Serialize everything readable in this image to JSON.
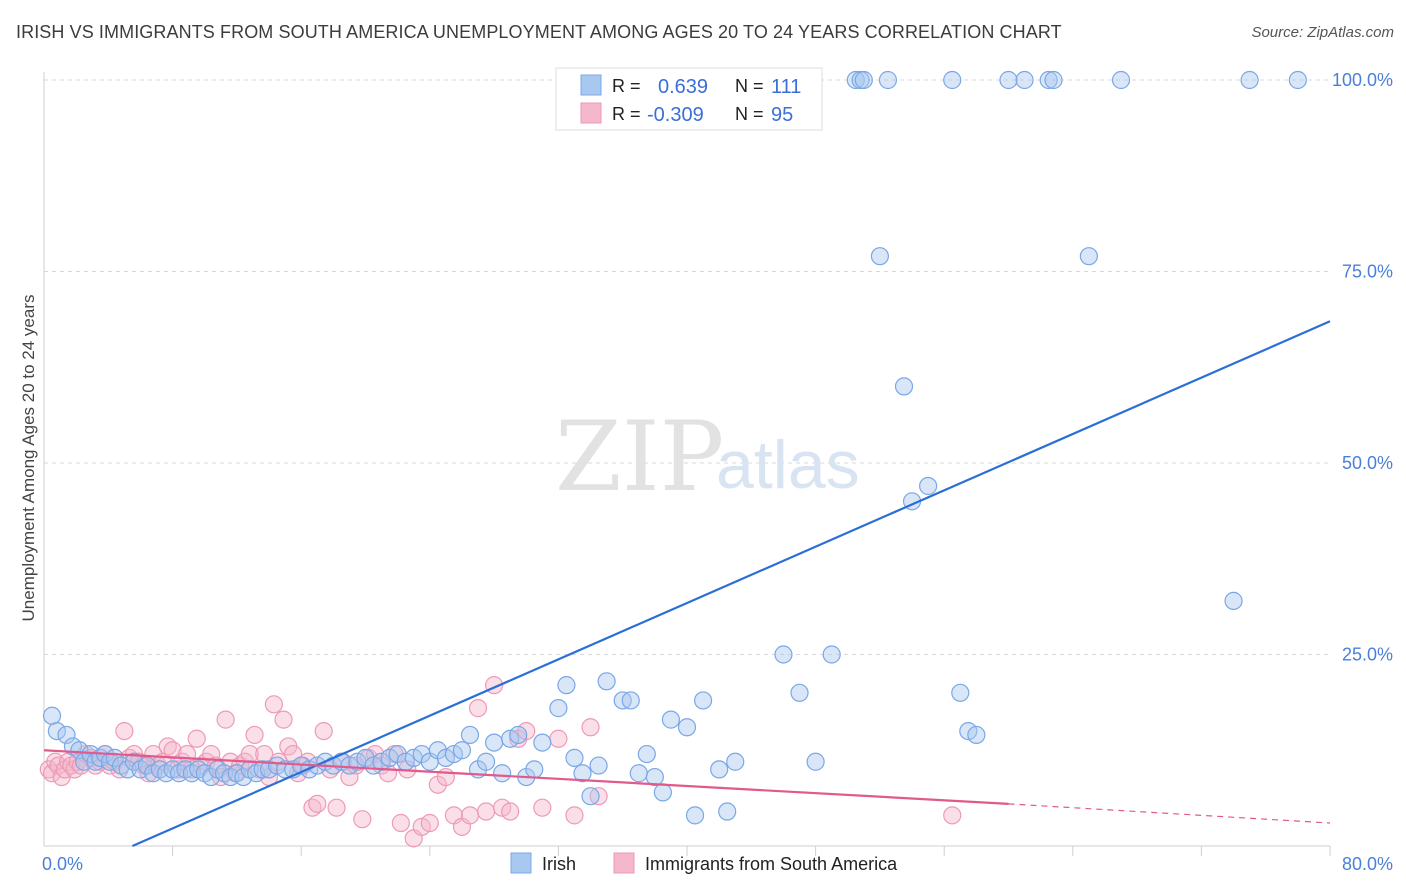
{
  "header": {
    "title": "IRISH VS IMMIGRANTS FROM SOUTH AMERICA UNEMPLOYMENT AMONG AGES 20 TO 24 YEARS CORRELATION CHART",
    "source": "Source: ZipAtlas.com"
  },
  "watermark": {
    "zip": "ZIP",
    "atlas": "atlas"
  },
  "legend": {
    "r_label": "R =",
    "n_label": "N =",
    "rows": [
      {
        "r": "0.639",
        "n": "111",
        "color": "#a8c8f0"
      },
      {
        "r": "-0.309",
        "n": "95",
        "color": "#f5b8cb"
      }
    ]
  },
  "bottom_legend": [
    {
      "label": "Irish",
      "color": "#a8c8f0"
    },
    {
      "label": "Immigrants from South America",
      "color": "#f5b8cb"
    }
  ],
  "colors": {
    "irish_fill": "rgba(168,200,240,0.45)",
    "irish_stroke": "#7aa7e6",
    "irish_line": "#2a6fd6",
    "sa_fill": "rgba(245,184,203,0.45)",
    "sa_stroke": "#ee9ab6",
    "sa_line": "#e05a8c",
    "grid": "#d8d8d8",
    "tick_text": "#4a7fd8"
  },
  "chart_data": {
    "type": "scatter",
    "title": "IRISH VS IMMIGRANTS FROM SOUTH AMERICA UNEMPLOYMENT AMONG AGES 20 TO 24 YEARS CORRELATION CHART",
    "xlabel": "",
    "ylabel": "Unemployment Among Ages 20 to 24 years",
    "xlim": [
      0,
      80
    ],
    "ylim": [
      0,
      105
    ],
    "x_tick_labels": [
      {
        "value": 0,
        "label": "0.0%"
      },
      {
        "value": 80,
        "label": "80.0%"
      }
    ],
    "y_tick_labels": [
      {
        "value": 25,
        "label": "25.0%"
      },
      {
        "value": 50,
        "label": "50.0%"
      },
      {
        "value": 75,
        "label": "75.0%"
      },
      {
        "value": 100,
        "label": "100.0%"
      }
    ],
    "x_grid_values": [
      0,
      8,
      16,
      24,
      32,
      40,
      48,
      56,
      64,
      72,
      80
    ],
    "y_grid_values": [
      25,
      50,
      75,
      100
    ],
    "grid": true,
    "legend_position": "top-center",
    "series": [
      {
        "name": "Irish",
        "r": 0.639,
        "n": 111,
        "trend": {
          "x1": 5.5,
          "y1": 0,
          "x2": 80,
          "y2": 68.5
        },
        "points": [
          [
            0.5,
            17
          ],
          [
            0.8,
            15
          ],
          [
            1.4,
            14.5
          ],
          [
            1.8,
            13
          ],
          [
            2.2,
            12.5
          ],
          [
            2.5,
            11
          ],
          [
            2.9,
            12
          ],
          [
            3.2,
            11
          ],
          [
            3.5,
            11.5
          ],
          [
            3.8,
            12
          ],
          [
            4.1,
            11
          ],
          [
            4.4,
            11.5
          ],
          [
            4.8,
            10.5
          ],
          [
            5.2,
            10
          ],
          [
            5.6,
            11
          ],
          [
            6,
            10
          ],
          [
            6.4,
            10.5
          ],
          [
            6.8,
            9.5
          ],
          [
            7.2,
            10
          ],
          [
            7.6,
            9.5
          ],
          [
            8,
            10
          ],
          [
            8.4,
            9.5
          ],
          [
            8.8,
            10
          ],
          [
            9.2,
            9.5
          ],
          [
            9.6,
            10
          ],
          [
            10,
            9.5
          ],
          [
            10.4,
            9
          ],
          [
            10.8,
            10
          ],
          [
            11.2,
            9.5
          ],
          [
            11.6,
            9
          ],
          [
            12,
            9.5
          ],
          [
            12.4,
            9
          ],
          [
            12.8,
            10
          ],
          [
            13.2,
            9.5
          ],
          [
            13.6,
            10
          ],
          [
            14,
            10
          ],
          [
            14.5,
            10.5
          ],
          [
            15,
            10
          ],
          [
            15.5,
            10
          ],
          [
            16,
            10.5
          ],
          [
            16.5,
            10
          ],
          [
            17,
            10.5
          ],
          [
            17.5,
            11
          ],
          [
            18,
            10.5
          ],
          [
            18.5,
            11
          ],
          [
            19,
            10.5
          ],
          [
            19.5,
            11
          ],
          [
            20,
            11.5
          ],
          [
            20.5,
            10.5
          ],
          [
            21,
            11
          ],
          [
            21.5,
            11.5
          ],
          [
            22,
            12
          ],
          [
            22.5,
            11
          ],
          [
            23,
            11.5
          ],
          [
            23.5,
            12
          ],
          [
            24,
            11
          ],
          [
            24.5,
            12.5
          ],
          [
            25,
            11.5
          ],
          [
            25.5,
            12
          ],
          [
            26,
            12.5
          ],
          [
            26.5,
            14.5
          ],
          [
            27,
            10
          ],
          [
            27.5,
            11
          ],
          [
            28,
            13.5
          ],
          [
            28.5,
            9.5
          ],
          [
            29,
            14
          ],
          [
            29.5,
            14.5
          ],
          [
            30,
            9
          ],
          [
            30.5,
            10
          ],
          [
            31,
            13.5
          ],
          [
            32,
            18
          ],
          [
            32.5,
            21
          ],
          [
            33,
            11.5
          ],
          [
            33.5,
            9.5
          ],
          [
            34,
            6.5
          ],
          [
            34.5,
            10.5
          ],
          [
            35,
            21.5
          ],
          [
            36,
            19
          ],
          [
            36.5,
            19
          ],
          [
            37,
            9.5
          ],
          [
            37.5,
            12
          ],
          [
            38,
            9
          ],
          [
            38.5,
            7
          ],
          [
            39,
            16.5
          ],
          [
            40,
            15.5
          ],
          [
            40.5,
            4
          ],
          [
            41,
            19
          ],
          [
            42,
            10
          ],
          [
            42.5,
            4.5
          ],
          [
            43,
            11
          ],
          [
            46,
            25
          ],
          [
            47,
            20
          ],
          [
            48,
            11
          ],
          [
            49,
            25
          ],
          [
            50.5,
            100
          ],
          [
            50.8,
            100
          ],
          [
            51,
            100
          ],
          [
            52,
            77
          ],
          [
            52.5,
            100
          ],
          [
            53.5,
            60
          ],
          [
            54,
            45
          ],
          [
            55,
            47
          ],
          [
            56.5,
            100
          ],
          [
            57,
            20
          ],
          [
            57.5,
            15
          ],
          [
            58,
            14.5
          ],
          [
            60,
            100
          ],
          [
            62.5,
            100
          ],
          [
            62.8,
            100
          ],
          [
            65,
            77
          ],
          [
            67,
            100
          ],
          [
            74,
            32
          ],
          [
            75,
            100
          ],
          [
            78,
            100
          ],
          [
            61,
            100
          ]
        ]
      },
      {
        "name": "Immigrants from South America",
        "r": -0.309,
        "n": 95,
        "trend": {
          "x1": 0,
          "y1": 12.5,
          "x2": 60,
          "y2": 5.5,
          "dashed_to_x": 80,
          "dashed_to_y": 3
        },
        "points": [
          [
            0.3,
            10
          ],
          [
            0.5,
            9.5
          ],
          [
            0.7,
            11
          ],
          [
            0.9,
            10.5
          ],
          [
            1.1,
            9
          ],
          [
            1.3,
            10
          ],
          [
            1.5,
            11
          ],
          [
            1.7,
            10.5
          ],
          [
            1.9,
            10
          ],
          [
            2.1,
            11
          ],
          [
            2.3,
            10.5
          ],
          [
            2.6,
            12
          ],
          [
            2.9,
            11.5
          ],
          [
            3.2,
            10.5
          ],
          [
            3.5,
            11
          ],
          [
            3.8,
            12
          ],
          [
            4.1,
            10.5
          ],
          [
            4.4,
            11
          ],
          [
            4.7,
            10
          ],
          [
            5,
            15
          ],
          [
            5.3,
            11.5
          ],
          [
            5.6,
            12
          ],
          [
            5.9,
            11
          ],
          [
            6.2,
            10.5
          ],
          [
            6.5,
            9.5
          ],
          [
            6.8,
            12
          ],
          [
            7.1,
            10.5
          ],
          [
            7.4,
            11
          ],
          [
            7.7,
            13
          ],
          [
            8,
            12.5
          ],
          [
            8.3,
            10
          ],
          [
            8.6,
            11
          ],
          [
            8.9,
            12
          ],
          [
            9.2,
            10
          ],
          [
            9.5,
            14
          ],
          [
            9.8,
            10.5
          ],
          [
            10.1,
            11
          ],
          [
            10.4,
            12
          ],
          [
            10.7,
            10.5
          ],
          [
            11,
            9
          ],
          [
            11.3,
            16.5
          ],
          [
            11.6,
            11
          ],
          [
            11.9,
            9.5
          ],
          [
            12.2,
            10.5
          ],
          [
            12.5,
            11
          ],
          [
            12.8,
            12
          ],
          [
            13.1,
            14.5
          ],
          [
            13.4,
            10
          ],
          [
            13.7,
            12
          ],
          [
            14,
            9
          ],
          [
            14.3,
            18.5
          ],
          [
            14.6,
            11
          ],
          [
            14.9,
            16.5
          ],
          [
            15.2,
            13
          ],
          [
            15.5,
            12
          ],
          [
            15.8,
            9.5
          ],
          [
            16.1,
            10.5
          ],
          [
            16.4,
            11
          ],
          [
            16.7,
            5
          ],
          [
            17,
            5.5
          ],
          [
            17.4,
            15
          ],
          [
            17.8,
            10
          ],
          [
            18.2,
            5
          ],
          [
            18.6,
            11
          ],
          [
            19,
            9
          ],
          [
            19.4,
            10.5
          ],
          [
            19.8,
            3.5
          ],
          [
            20.2,
            11.5
          ],
          [
            20.6,
            12
          ],
          [
            21,
            10.5
          ],
          [
            21.4,
            9.5
          ],
          [
            21.8,
            12
          ],
          [
            22.2,
            3
          ],
          [
            22.6,
            10
          ],
          [
            23,
            1
          ],
          [
            23.5,
            2.5
          ],
          [
            24,
            3
          ],
          [
            24.5,
            8
          ],
          [
            25,
            9
          ],
          [
            25.5,
            4
          ],
          [
            26,
            2.5
          ],
          [
            26.5,
            4
          ],
          [
            27,
            18
          ],
          [
            27.5,
            4.5
          ],
          [
            28,
            21
          ],
          [
            28.5,
            5
          ],
          [
            29,
            4.5
          ],
          [
            29.5,
            14
          ],
          [
            30,
            15
          ],
          [
            31,
            5
          ],
          [
            32,
            14
          ],
          [
            33,
            4
          ],
          [
            34,
            15.5
          ],
          [
            34.5,
            6.5
          ],
          [
            56.5,
            4
          ]
        ]
      }
    ]
  }
}
